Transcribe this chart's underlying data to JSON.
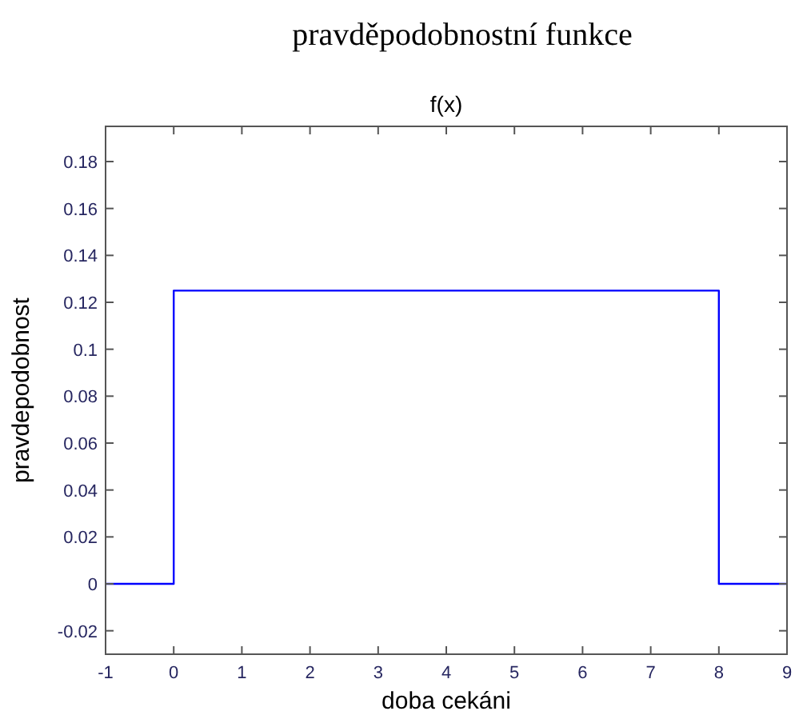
{
  "chart_data": {
    "type": "step",
    "title": "pravděpodobnostní funkce",
    "subtitle": "f(x)",
    "xlabel": "doba cekáni",
    "ylabel": "pravdepodobnost",
    "x": [
      -1,
      0,
      8,
      9
    ],
    "series": [
      {
        "color": "#0000ff",
        "values": [
          0,
          0.125,
          0,
          0
        ]
      }
    ],
    "xlim": [
      -1,
      9
    ],
    "xticks": [
      -1,
      0,
      1,
      2,
      3,
      4,
      5,
      6,
      7,
      8,
      9
    ],
    "ylim": [
      -0.03,
      0.195
    ],
    "yticks": [
      -0.02,
      0,
      0.02,
      0.04,
      0.06,
      0.08,
      0.1,
      0.12,
      0.14,
      0.16,
      0.18
    ],
    "grid": false
  }
}
